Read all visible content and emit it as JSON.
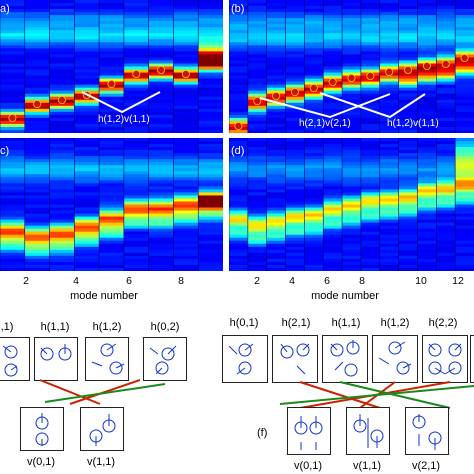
{
  "panels": [
    {
      "id": "a",
      "label": "a)"
    },
    {
      "id": "b",
      "label": "(b)"
    },
    {
      "id": "c",
      "label": "c)"
    },
    {
      "id": "d",
      "label": "(d)"
    }
  ],
  "annotations": {
    "a": "h(1,2)v(1,1)",
    "b_left": "h(2,1)v(2,1)",
    "b_right": "h(1,2)v(1,1)"
  },
  "x_axis": {
    "label_left": "mode number",
    "label_right": "mode number",
    "ticks_left": [
      "2",
      "4",
      "6",
      "8"
    ],
    "ticks_right": [
      "2",
      "4",
      "6",
      "8",
      "10",
      "12"
    ]
  },
  "mode_diagram_left": {
    "top_labels": [
      ",1)",
      "h(1,1)",
      "h(1,2)",
      "h(0,2)"
    ],
    "bottom_labels": [
      "v(0,1)",
      "v(1,1)"
    ]
  },
  "mode_diagram_right": {
    "top_labels": [
      "h(0,1)",
      "h(2,1)",
      "h(1,1)",
      "h(1,2)",
      "h(2,2)"
    ],
    "bottom_labels": [
      "v(0,1)",
      "v(1,1)",
      "v(2,1)"
    ],
    "panel_label": "(f)"
  },
  "colors": {
    "background_low": "#00008f",
    "peak_high": "#ff0000",
    "marker": "#cc1111",
    "green_line": "#1a8a1a",
    "red_line": "#cc2200",
    "arrow": "#1133cc"
  }
}
